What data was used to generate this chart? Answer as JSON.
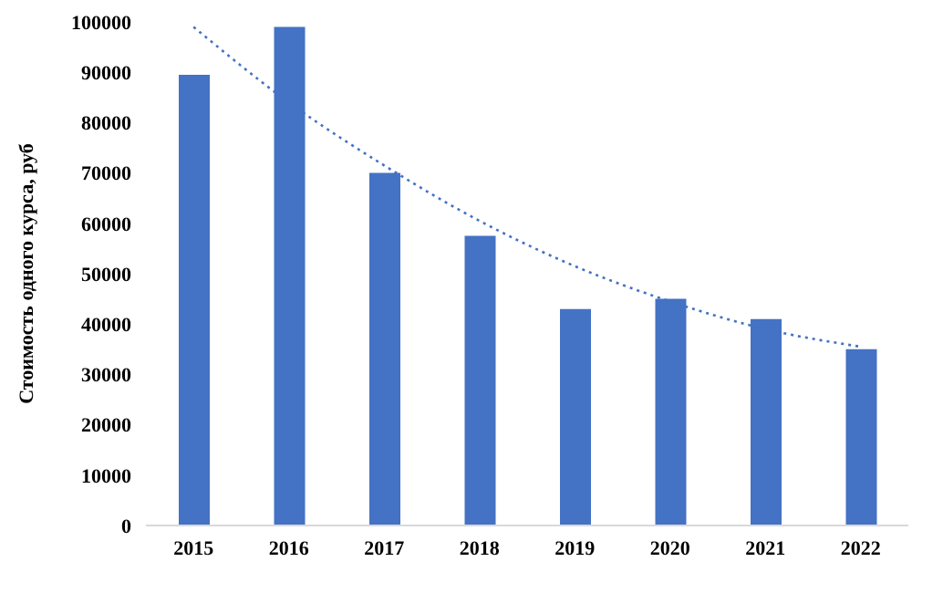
{
  "chart_data": {
    "type": "bar",
    "ylabel": "Стоимость одного курса, руб",
    "categories": [
      "2015",
      "2016",
      "2017",
      "2018",
      "2019",
      "2020",
      "2021",
      "2022"
    ],
    "series": [
      {
        "color": "#4472c4",
        "values": [
          89500,
          99000,
          70000,
          57500,
          43000,
          45000,
          41000,
          35000
        ]
      },
      {
        "type": "line",
        "color": "#4472c4",
        "line_style": "dotted",
        "values": [
          99000,
          84000,
          71500,
          60500,
          51500,
          44500,
          39000,
          35500
        ]
      }
    ],
    "ylim": [
      0,
      100000
    ],
    "yticks": [
      0,
      10000,
      20000,
      30000,
      40000,
      50000,
      60000,
      70000,
      80000,
      90000,
      100000
    ],
    "marker": "none"
  }
}
